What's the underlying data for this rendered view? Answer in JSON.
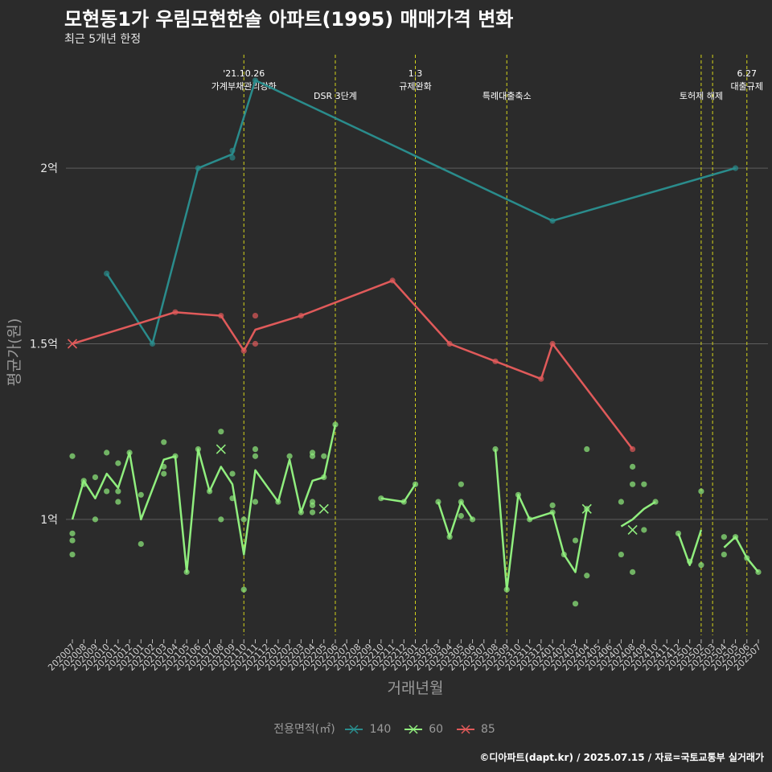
{
  "title": "모현동1가 우림모현한솔 아파트(1995) 매매가격 변화",
  "subtitle": "최근 5개년 한정",
  "caption": "©디아파트(dapt.kr) / 2025.07.15 / 자료=국토교통부 실거래가",
  "legend": {
    "title": "전용면적(㎡)",
    "items": [
      {
        "label": "140",
        "color": "#2a8c8c"
      },
      {
        "label": "60",
        "color": "#90ee7e"
      },
      {
        "label": "85",
        "color": "#e05a5a"
      }
    ]
  },
  "chart_data": {
    "type": "line",
    "xlabel": "거래년월",
    "ylabel": "평균가(원)",
    "x_categories": [
      "202007",
      "202008",
      "202009",
      "202010",
      "202011",
      "202012",
      "202101",
      "202102",
      "202103",
      "202104",
      "202105",
      "202106",
      "202107",
      "202108",
      "202109",
      "202110",
      "202111",
      "202112",
      "202201",
      "202202",
      "202203",
      "202204",
      "202205",
      "202206",
      "202207",
      "202208",
      "202209",
      "202210",
      "202211",
      "202212",
      "202301",
      "202302",
      "202303",
      "202304",
      "202305",
      "202306",
      "202307",
      "202308",
      "202309",
      "202310",
      "202311",
      "202312",
      "202401",
      "202402",
      "202403",
      "202404",
      "202405",
      "202406",
      "202407",
      "202408",
      "202409",
      "202410",
      "202411",
      "202412",
      "202501",
      "202502",
      "202503",
      "202504",
      "202505",
      "202506",
      "202507"
    ],
    "yticks": [
      {
        "value": 1.0,
        "label": "1억"
      },
      {
        "value": 1.5,
        "label": "1.5억"
      },
      {
        "value": 2.0,
        "label": "2억"
      }
    ],
    "ylim": [
      0.67,
      2.33
    ],
    "grid": "horizontal",
    "events": [
      {
        "x": "202110",
        "label": "'21.10.26\n가계부채관리강화"
      },
      {
        "x": "202206",
        "label": "DSR 3단계"
      },
      {
        "x": "202301",
        "label": "1.3\n규제완화"
      },
      {
        "x": "202309",
        "label": "특례대출축소"
      },
      {
        "x": "202502",
        "label": "토허제 해제"
      },
      {
        "x": "202503",
        "label": ""
      },
      {
        "x": "202506",
        "label": "6.27\n대출규제"
      }
    ],
    "series": [
      {
        "name": "140",
        "color": "#2a8c8c",
        "line": [
          [
            "202010",
            1.7
          ],
          [
            "202102",
            1.5
          ],
          [
            "202106",
            2.0
          ],
          [
            "202109",
            2.04
          ],
          [
            "202111",
            2.25
          ],
          [
            "202401",
            1.85
          ],
          [
            "202505",
            2.0
          ]
        ],
        "points": [
          [
            "202010",
            1.7
          ],
          [
            "202102",
            1.5
          ],
          [
            "202106",
            2.0
          ],
          [
            "202109",
            2.03
          ],
          [
            "202109",
            2.05
          ],
          [
            "202111",
            2.25
          ],
          [
            "202401",
            1.85
          ],
          [
            "202505",
            2.0
          ]
        ],
        "cancelled": []
      },
      {
        "name": "60",
        "color": "#90ee7e",
        "line": [
          [
            [
              "202007",
              1.0
            ],
            [
              "202008",
              1.11
            ],
            [
              "202009",
              1.06
            ],
            [
              "202010",
              1.13
            ],
            [
              "202011",
              1.09
            ],
            [
              "202012",
              1.19
            ],
            [
              "202101",
              1.0
            ],
            [
              "202103",
              1.17
            ],
            [
              "202104",
              1.18
            ],
            [
              "202105",
              0.85
            ],
            [
              "202106",
              1.2
            ],
            [
              "202107",
              1.08
            ],
            [
              "202108",
              1.15
            ],
            [
              "202109",
              1.1
            ],
            [
              "202110",
              0.9
            ],
            [
              "202111",
              1.14
            ],
            [
              "202201",
              1.05
            ],
            [
              "202202",
              1.17
            ],
            [
              "202203",
              1.02
            ],
            [
              "202204",
              1.11
            ],
            [
              "202205",
              1.12
            ],
            [
              "202206",
              1.27
            ]
          ],
          [
            [
              "202210",
              1.06
            ],
            [
              "202212",
              1.05
            ],
            [
              "202301",
              1.1
            ]
          ],
          [
            [
              "202303",
              1.05
            ],
            [
              "202304",
              0.95
            ],
            [
              "202305",
              1.05
            ],
            [
              "202306",
              1.0
            ]
          ],
          [
            [
              "202308",
              1.2
            ],
            [
              "202309",
              0.8
            ],
            [
              "202310",
              1.07
            ],
            [
              "202311",
              1.0
            ],
            [
              "202401",
              1.02
            ],
            [
              "202402",
              0.9
            ],
            [
              "202403",
              0.85
            ],
            [
              "202404",
              1.03
            ]
          ],
          [
            [
              "202407",
              0.98
            ],
            [
              "202408",
              1.0
            ],
            [
              "202409",
              1.03
            ],
            [
              "202410",
              1.05
            ]
          ],
          [
            [
              "202412",
              0.96
            ],
            [
              "202501",
              0.87
            ],
            [
              "202502",
              0.97
            ]
          ],
          [
            [
              "202504",
              0.92
            ],
            [
              "202505",
              0.95
            ],
            [
              "202506",
              0.89
            ],
            [
              "202507",
              0.85
            ]
          ]
        ],
        "points": [
          [
            "202007",
            1.18
          ],
          [
            "202007",
            0.96
          ],
          [
            "202007",
            0.94
          ],
          [
            "202007",
            0.9
          ],
          [
            "202008",
            1.11
          ],
          [
            "202008",
            1.1
          ],
          [
            "202009",
            1.12
          ],
          [
            "202009",
            1.0
          ],
          [
            "202010",
            1.19
          ],
          [
            "202010",
            1.08
          ],
          [
            "202011",
            1.16
          ],
          [
            "202011",
            1.08
          ],
          [
            "202011",
            1.05
          ],
          [
            "202012",
            1.19
          ],
          [
            "202101",
            1.07
          ],
          [
            "202101",
            0.93
          ],
          [
            "202103",
            1.22
          ],
          [
            "202103",
            1.15
          ],
          [
            "202103",
            1.13
          ],
          [
            "202104",
            1.18
          ],
          [
            "202105",
            0.85
          ],
          [
            "202106",
            1.2
          ],
          [
            "202107",
            1.08
          ],
          [
            "202108",
            1.25
          ],
          [
            "202108",
            1.0
          ],
          [
            "202109",
            1.13
          ],
          [
            "202109",
            1.06
          ],
          [
            "202110",
            1.0
          ],
          [
            "202110",
            0.8
          ],
          [
            "202111",
            1.2
          ],
          [
            "202111",
            1.18
          ],
          [
            "202111",
            1.05
          ],
          [
            "202201",
            1.05
          ],
          [
            "202202",
            1.18
          ],
          [
            "202203",
            1.02
          ],
          [
            "202204",
            1.19
          ],
          [
            "202204",
            1.18
          ],
          [
            "202204",
            1.05
          ],
          [
            "202204",
            1.04
          ],
          [
            "202204",
            1.02
          ],
          [
            "202205",
            1.18
          ],
          [
            "202205",
            1.12
          ],
          [
            "202206",
            1.27
          ],
          [
            "202210",
            1.06
          ],
          [
            "202212",
            1.05
          ],
          [
            "202301",
            1.1
          ],
          [
            "202303",
            1.05
          ],
          [
            "202304",
            0.95
          ],
          [
            "202305",
            1.1
          ],
          [
            "202305",
            1.05
          ],
          [
            "202305",
            1.01
          ],
          [
            "202306",
            1.0
          ],
          [
            "202308",
            1.2
          ],
          [
            "202309",
            0.8
          ],
          [
            "202310",
            1.07
          ],
          [
            "202311",
            1.0
          ],
          [
            "202401",
            1.04
          ],
          [
            "202401",
            1.02
          ],
          [
            "202402",
            0.9
          ],
          [
            "202403",
            0.94
          ],
          [
            "202403",
            0.76
          ],
          [
            "202404",
            1.2
          ],
          [
            "202404",
            1.03
          ],
          [
            "202404",
            0.84
          ],
          [
            "202407",
            1.05
          ],
          [
            "202407",
            0.9
          ],
          [
            "202408",
            1.15
          ],
          [
            "202408",
            1.1
          ],
          [
            "202408",
            0.85
          ],
          [
            "202409",
            1.1
          ],
          [
            "202409",
            0.97
          ],
          [
            "202410",
            1.05
          ],
          [
            "202412",
            0.96
          ],
          [
            "202501",
            0.88
          ],
          [
            "202502",
            1.08
          ],
          [
            "202502",
            0.87
          ],
          [
            "202504",
            0.95
          ],
          [
            "202504",
            0.9
          ],
          [
            "202505",
            0.95
          ],
          [
            "202506",
            0.89
          ],
          [
            "202507",
            0.85
          ]
        ],
        "cancelled": [
          [
            "202108",
            1.2
          ],
          [
            "202205",
            1.03
          ],
          [
            "202404",
            1.03
          ],
          [
            "202408",
            0.97
          ]
        ]
      },
      {
        "name": "85",
        "color": "#e05a5a",
        "line": [
          [
            "202007",
            1.5
          ],
          [
            "202104",
            1.59
          ],
          [
            "202108",
            1.58
          ],
          [
            "202110",
            1.48
          ],
          [
            "202111",
            1.54
          ],
          [
            "202203",
            1.58
          ],
          [
            "202211",
            1.68
          ],
          [
            "202304",
            1.5
          ],
          [
            "202308",
            1.45
          ],
          [
            "202312",
            1.4
          ],
          [
            "202401",
            1.5
          ],
          [
            "202408",
            1.2
          ]
        ],
        "points": [
          [
            "202104",
            1.59
          ],
          [
            "202108",
            1.58
          ],
          [
            "202110",
            1.48
          ],
          [
            "202111",
            1.58
          ],
          [
            "202111",
            1.5
          ],
          [
            "202203",
            1.58
          ],
          [
            "202211",
            1.68
          ],
          [
            "202304",
            1.5
          ],
          [
            "202308",
            1.45
          ],
          [
            "202312",
            1.4
          ],
          [
            "202401",
            1.5
          ],
          [
            "202408",
            1.2
          ]
        ],
        "cancelled": [
          [
            "202007",
            1.5
          ]
        ]
      }
    ]
  }
}
